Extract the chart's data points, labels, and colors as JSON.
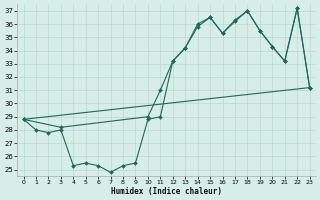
{
  "xlabel": "Humidex (Indice chaleur)",
  "bg_color": "#d6ede8",
  "grid_color": "#b8d8d0",
  "line_color": "#1a6b5a",
  "xlim": [
    -0.5,
    23.5
  ],
  "ylim": [
    24.5,
    37.5
  ],
  "xticks": [
    0,
    1,
    2,
    3,
    4,
    5,
    6,
    7,
    8,
    9,
    10,
    11,
    12,
    13,
    14,
    15,
    16,
    17,
    18,
    19,
    20,
    21,
    22,
    23
  ],
  "yticks": [
    25,
    26,
    27,
    28,
    29,
    30,
    31,
    32,
    33,
    34,
    35,
    36,
    37
  ],
  "series1_x": [
    0,
    1,
    2,
    3,
    4,
    5,
    6,
    7,
    8,
    9,
    10,
    11,
    12,
    13,
    14,
    15,
    16,
    17,
    18,
    19,
    20,
    21,
    22,
    23
  ],
  "series1_y": [
    28.8,
    28.0,
    27.8,
    28.0,
    25.3,
    25.5,
    25.3,
    24.8,
    25.3,
    25.5,
    28.8,
    29.0,
    33.2,
    34.2,
    35.8,
    36.5,
    35.3,
    36.3,
    37.0,
    35.5,
    34.3,
    33.2,
    37.2,
    31.2
  ],
  "series2_x": [
    0,
    23
  ],
  "series2_y": [
    28.8,
    31.2
  ],
  "series3_x": [
    0,
    3,
    10,
    11,
    12,
    13,
    14,
    15,
    16,
    17,
    18,
    19,
    20,
    21,
    22,
    23
  ],
  "series3_y": [
    28.8,
    28.2,
    29.0,
    31.0,
    33.2,
    34.2,
    36.0,
    36.5,
    35.3,
    36.2,
    37.0,
    35.5,
    34.3,
    33.2,
    37.2,
    31.2
  ]
}
